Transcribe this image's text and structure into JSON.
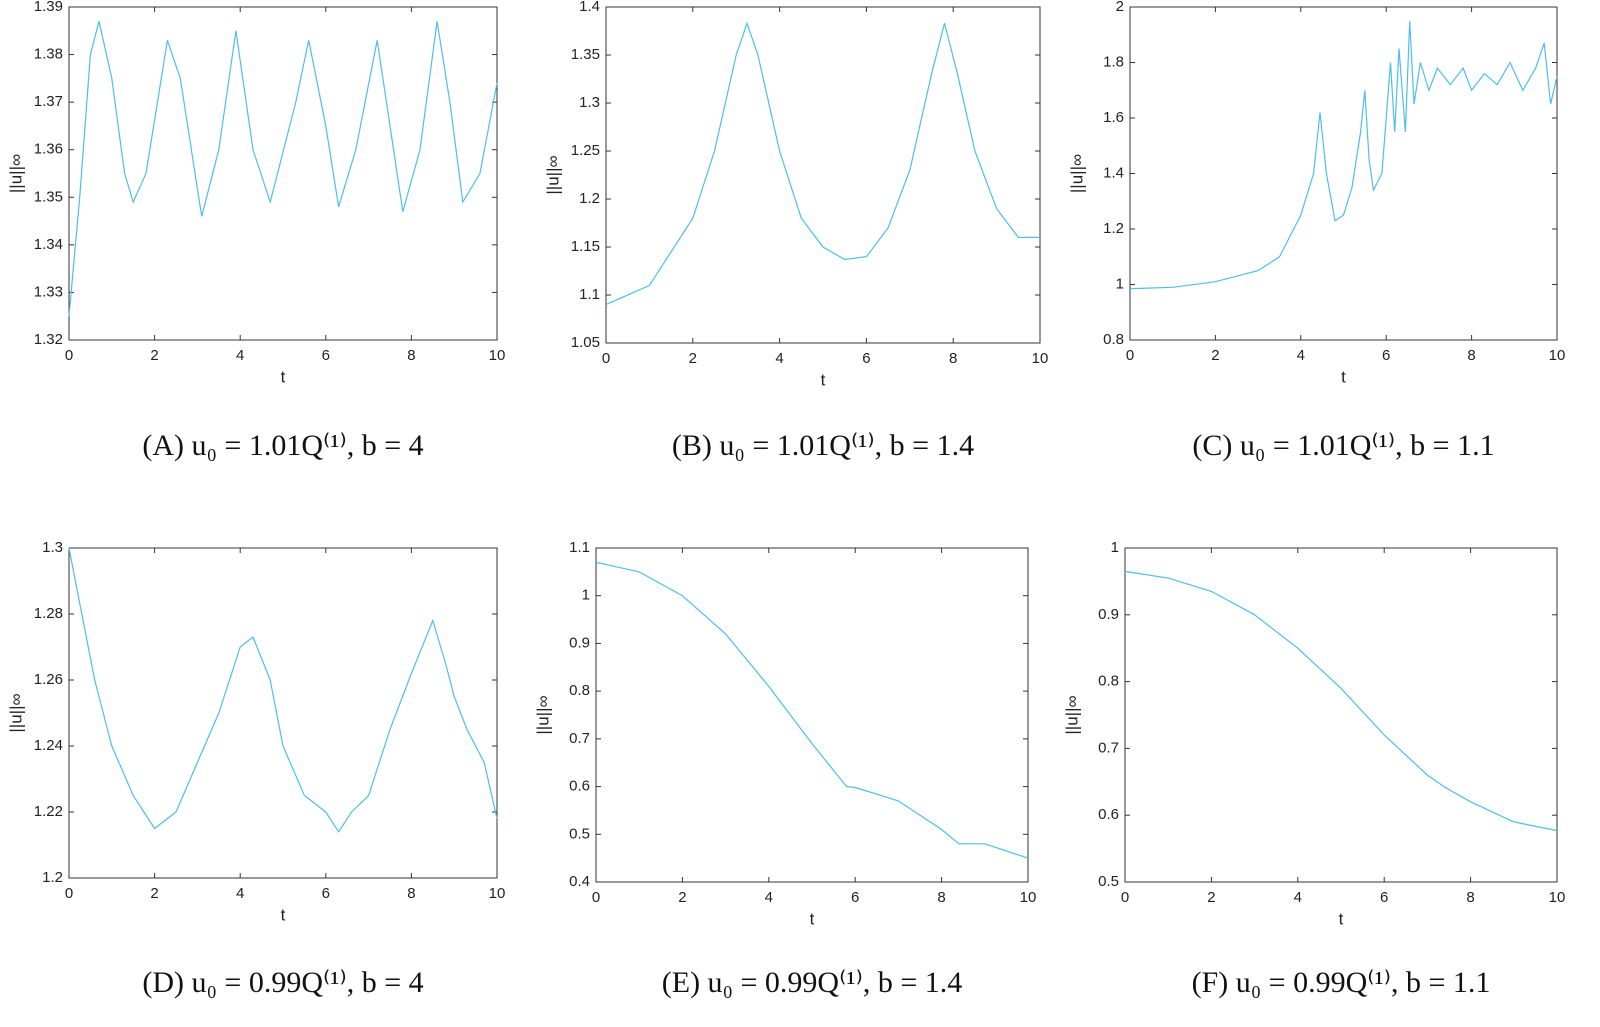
{
  "chart_data": [
    {
      "type": "line",
      "caption": "(A) u₀ = 1.01Q⁽¹⁾, b = 4",
      "xlabel": "t",
      "ylabel": "||u||∞",
      "color": "#4dbeee",
      "x": [
        0,
        0.25,
        0.5,
        0.7,
        1,
        1.3,
        1.5,
        1.8,
        2.3,
        2.6,
        3.1,
        3.5,
        3.9,
        4.3,
        4.7,
        5.3,
        5.6,
        6.0,
        6.3,
        6.7,
        7.2,
        7.5,
        7.8,
        8.2,
        8.6,
        8.9,
        9.2,
        9.6,
        10
      ],
      "values": [
        1.325,
        1.35,
        1.38,
        1.387,
        1.375,
        1.355,
        1.349,
        1.355,
        1.383,
        1.375,
        1.346,
        1.36,
        1.385,
        1.36,
        1.349,
        1.37,
        1.383,
        1.365,
        1.348,
        1.36,
        1.383,
        1.365,
        1.347,
        1.36,
        1.387,
        1.37,
        1.349,
        1.355,
        1.374
      ],
      "xlim": [
        0,
        10
      ],
      "xticks": [
        0,
        2,
        4,
        6,
        8,
        10
      ],
      "ylim": [
        1.32,
        1.39
      ],
      "yticks": [
        1.32,
        1.33,
        1.34,
        1.35,
        1.36,
        1.37,
        1.38,
        1.39
      ]
    },
    {
      "type": "line",
      "caption": "(B) u₀ = 1.01Q⁽¹⁾, b = 1.4",
      "xlabel": "t",
      "ylabel": "||u||∞",
      "color": "#4dbeee",
      "x": [
        0,
        1,
        2,
        2.5,
        3,
        3.25,
        3.5,
        4,
        4.5,
        5,
        5.5,
        6,
        6.5,
        7,
        7.5,
        7.8,
        8.1,
        8.5,
        9,
        9.5,
        10
      ],
      "values": [
        1.09,
        1.11,
        1.18,
        1.25,
        1.35,
        1.383,
        1.35,
        1.25,
        1.18,
        1.15,
        1.137,
        1.14,
        1.17,
        1.23,
        1.33,
        1.383,
        1.33,
        1.25,
        1.19,
        1.16,
        1.16
      ],
      "xlim": [
        0,
        10
      ],
      "xticks": [
        0,
        2,
        4,
        6,
        8,
        10
      ],
      "ylim": [
        1.05,
        1.4
      ],
      "yticks": [
        1.05,
        1.1,
        1.15,
        1.2,
        1.25,
        1.3,
        1.35,
        1.4
      ]
    },
    {
      "type": "line",
      "caption": "(C) u₀ = 1.01Q⁽¹⁾, b = 1.1",
      "xlabel": "t",
      "ylabel": "||u||∞",
      "color": "#4dbeee",
      "x": [
        0,
        1,
        2,
        3,
        3.5,
        4,
        4.3,
        4.45,
        4.6,
        4.8,
        5,
        5.2,
        5.4,
        5.5,
        5.6,
        5.7,
        5.9,
        6.1,
        6.2,
        6.3,
        6.45,
        6.55,
        6.65,
        6.8,
        7,
        7.2,
        7.5,
        7.8,
        8,
        8.3,
        8.6,
        8.9,
        9.2,
        9.5,
        9.7,
        9.85,
        10
      ],
      "values": [
        0.985,
        0.99,
        1.01,
        1.05,
        1.1,
        1.25,
        1.4,
        1.62,
        1.4,
        1.23,
        1.25,
        1.35,
        1.55,
        1.7,
        1.45,
        1.34,
        1.4,
        1.8,
        1.55,
        1.85,
        1.55,
        1.95,
        1.65,
        1.8,
        1.7,
        1.78,
        1.72,
        1.78,
        1.7,
        1.76,
        1.72,
        1.8,
        1.7,
        1.78,
        1.87,
        1.65,
        1.75
      ],
      "xlim": [
        0,
        10
      ],
      "xticks": [
        0,
        2,
        4,
        6,
        8,
        10
      ],
      "ylim": [
        0.8,
        2
      ],
      "yticks": [
        0.8,
        1,
        1.2,
        1.4,
        1.6,
        1.8,
        2
      ]
    },
    {
      "type": "line",
      "caption": "(D) u₀ = 0.99Q⁽¹⁾, b = 4",
      "xlabel": "t",
      "ylabel": "||u||∞",
      "color": "#4dbeee",
      "x": [
        0,
        0.3,
        0.6,
        1,
        1.5,
        2,
        2.5,
        3,
        3.5,
        4,
        4.3,
        4.7,
        5,
        5.5,
        6,
        6.3,
        6.6,
        7,
        7.5,
        8,
        8.5,
        8.8,
        9,
        9.3,
        9.7,
        10
      ],
      "values": [
        1.3,
        1.28,
        1.26,
        1.24,
        1.225,
        1.215,
        1.22,
        1.235,
        1.25,
        1.27,
        1.273,
        1.26,
        1.24,
        1.225,
        1.22,
        1.214,
        1.22,
        1.225,
        1.245,
        1.262,
        1.278,
        1.265,
        1.255,
        1.245,
        1.235,
        1.218
      ],
      "xlim": [
        0,
        10
      ],
      "xticks": [
        0,
        2,
        4,
        6,
        8,
        10
      ],
      "ylim": [
        1.2,
        1.3
      ],
      "yticks": [
        1.2,
        1.22,
        1.24,
        1.26,
        1.28,
        1.3
      ]
    },
    {
      "type": "line",
      "caption": "(E) u₀ = 0.99Q⁽¹⁾, b = 1.4",
      "xlabel": "t",
      "ylabel": "||u||∞",
      "color": "#4dbeee",
      "x": [
        0,
        1,
        2,
        3,
        4,
        5,
        5.8,
        6,
        7,
        8,
        8.4,
        9,
        10
      ],
      "values": [
        1.07,
        1.05,
        1.0,
        0.92,
        0.81,
        0.69,
        0.6,
        0.598,
        0.57,
        0.51,
        0.48,
        0.48,
        0.45
      ],
      "xlim": [
        0,
        10
      ],
      "xticks": [
        0,
        2,
        4,
        6,
        8,
        10
      ],
      "ylim": [
        0.4,
        1.1
      ],
      "yticks": [
        0.4,
        0.5,
        0.6,
        0.7,
        0.8,
        0.9,
        1,
        1.1
      ]
    },
    {
      "type": "line",
      "caption": "(F) u₀ = 0.99Q⁽¹⁾, b = 1.1",
      "xlabel": "t",
      "ylabel": "||u||∞",
      "color": "#4dbeee",
      "x": [
        0,
        1,
        2,
        3,
        4,
        5,
        6,
        7,
        7.4,
        8,
        9,
        10
      ],
      "values": [
        0.965,
        0.955,
        0.935,
        0.9,
        0.85,
        0.79,
        0.72,
        0.66,
        0.642,
        0.62,
        0.59,
        0.577
      ],
      "xlim": [
        0,
        10
      ],
      "xticks": [
        0,
        2,
        4,
        6,
        8,
        10
      ],
      "ylim": [
        0.5,
        1
      ],
      "yticks": [
        0.5,
        0.6,
        0.7,
        0.8,
        0.9,
        1
      ]
    }
  ]
}
